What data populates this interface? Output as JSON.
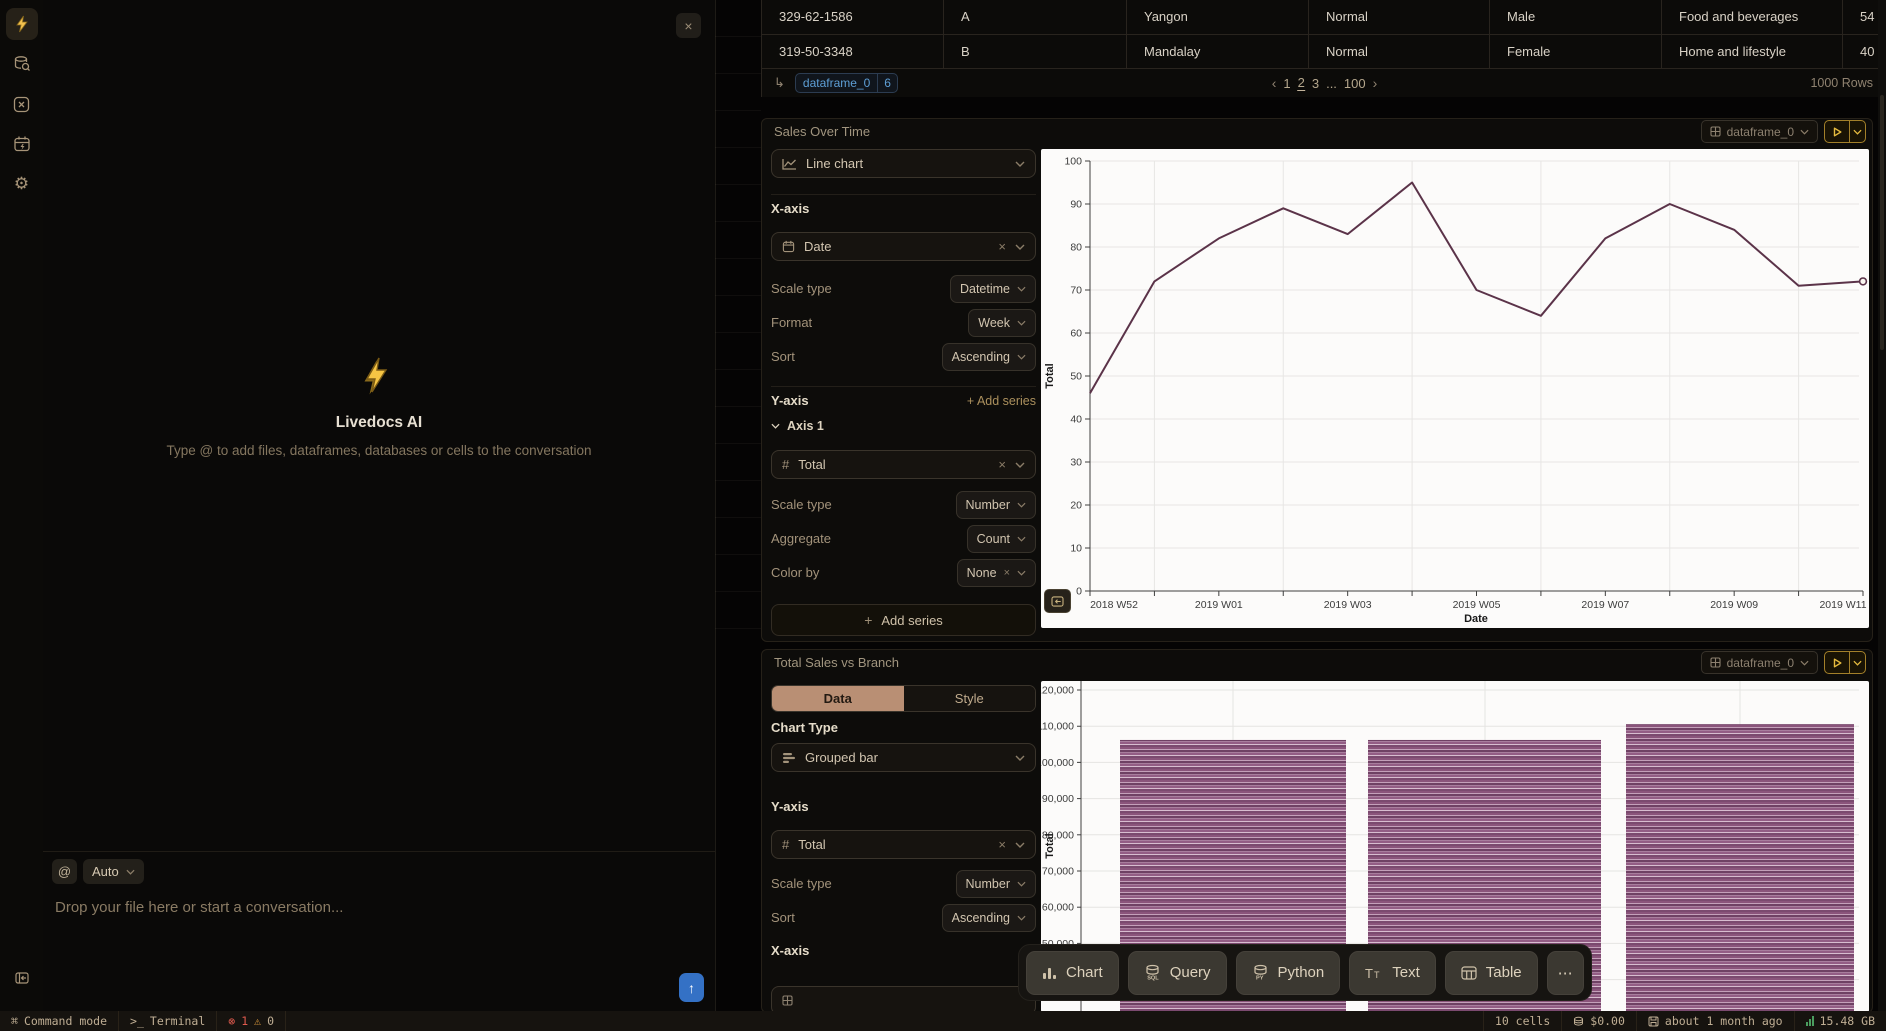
{
  "rail": {
    "icons": [
      "lightning-icon",
      "database-search-icon",
      "variable-box-icon",
      "calendar-bolt-icon",
      "gear-icon",
      "collapse-panel-icon"
    ]
  },
  "ai_panel": {
    "close": "×",
    "title": "Livedocs AI",
    "subtitle": "Type @ to add files, dataframes, databases or cells to the conversation",
    "at_symbol": "@",
    "mode": "Auto",
    "placeholder": "Drop your file here or start a conversation..."
  },
  "table": {
    "rows": [
      [
        "329-62-1586",
        "A",
        "Yangon",
        "Normal",
        "Male",
        "Food and beverages",
        "54"
      ],
      [
        "319-50-3348",
        "B",
        "Mandalay",
        "Normal",
        "Female",
        "Home and lifestyle",
        "40"
      ]
    ],
    "footer": {
      "pointer": "↳",
      "dataframe": "dataframe_0",
      "badge_count": "6",
      "prev": "‹",
      "page_1": "1",
      "page_2": "2",
      "page_3": "3",
      "ellipsis": "...",
      "page_100": "100",
      "next": "›",
      "rows_label": "1000 Rows"
    }
  },
  "sales_cell": {
    "title": "Sales Over Time",
    "dataframe": "dataframe_0",
    "chart_type": "Line chart",
    "xaxis_label": "X-axis",
    "x_field": "Date",
    "scale_type_label": "Scale type",
    "x_scale": "Datetime",
    "format_label": "Format",
    "x_format": "Week",
    "sort_label": "Sort",
    "x_sort": "Ascending",
    "yaxis_label": "Y-axis",
    "add_series_link": "+ Add series",
    "axis1_label": "Axis 1",
    "y_field": "Total",
    "y_scale_label": "Scale type",
    "y_scale": "Number",
    "aggregate_label": "Aggregate",
    "y_aggregate": "Count",
    "color_by_label": "Color by",
    "color_by": "None",
    "add_series_button": "Add series"
  },
  "branch_cell": {
    "title": "Total Sales vs Branch",
    "dataframe": "dataframe_0",
    "tab_data": "Data",
    "tab_style": "Style",
    "chart_type_label": "Chart Type",
    "chart_type": "Grouped bar",
    "yaxis_label": "Y-axis",
    "y_field": "Total",
    "scale_type_label": "Scale type",
    "y_scale": "Number",
    "sort_label": "Sort",
    "y_sort": "Ascending",
    "xaxis_label": "X-axis"
  },
  "toolbar": {
    "chart": "Chart",
    "query": "Query",
    "python": "Python",
    "text": "Text",
    "table": "Table",
    "more": "⋯"
  },
  "statusbar": {
    "command": "Command mode",
    "terminal": "Terminal",
    "error_count": "1",
    "warning_count": "0",
    "cells": "10 cells",
    "cost": "$0.00",
    "saved": "about 1 month ago",
    "memory": "15.48 GB"
  },
  "colors": {
    "accent_yellow": "#e6bb3f",
    "dataframe_blue": "#5e9fd6",
    "tab_active": "#b98f74",
    "send_blue": "#3471c5",
    "error_red": "#e05a4e",
    "warning_orange": "#dd9a3c",
    "memory_green": "#4a9d5f"
  },
  "chart_data": [
    {
      "type": "line",
      "title": "Sales Over Time",
      "xlabel": "Date",
      "ylabel": "Total",
      "ylim": [
        0,
        100
      ],
      "y_tick_step": 10,
      "x_ticks_shown": [
        "2018 W52",
        "2019 W01",
        "2019 W03",
        "2019 W05",
        "2019 W07",
        "2019 W09",
        "2019 W11"
      ],
      "n_points": 13,
      "values": [
        46,
        72,
        82,
        89,
        83,
        95,
        70,
        64,
        82,
        90,
        84,
        71,
        72
      ],
      "color": "#5b3349",
      "grid": true,
      "end_marker": "open-circle",
      "legend": "none"
    },
    {
      "type": "bar",
      "title": "Total Sales vs Branch",
      "ylabel": "Total",
      "ylim_top": 120000,
      "y_tick_step": 10000,
      "values": [
        106200,
        106200,
        110570
      ],
      "color": "#8d5680",
      "stripe_colors": [
        "#8a547b",
        "#c4a0ba",
        "#6f4164",
        "#a87d9d",
        "#935d85",
        "#d8bdd0",
        "#7b4a6f"
      ],
      "grid": true,
      "x_labels_visible": false
    }
  ]
}
